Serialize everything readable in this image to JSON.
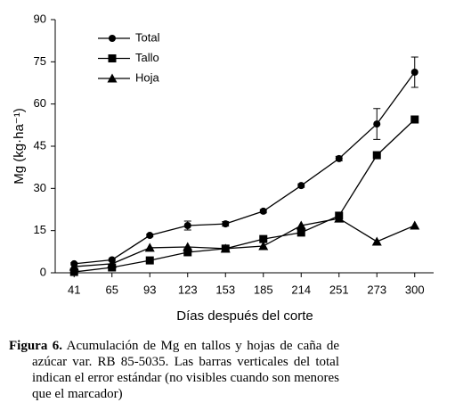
{
  "chart_data": {
    "type": "line",
    "x_label": "Días después del corte",
    "y_label": "Mg (kg·ha⁻¹)",
    "categories": [
      "41",
      "65",
      "93",
      "123",
      "153",
      "185",
      "214",
      "251",
      "273",
      "300"
    ],
    "series": [
      {
        "name": "Total",
        "color": "#000000",
        "marker": "circle",
        "values": [
          3.2,
          4.6,
          13.3,
          16.8,
          17.4,
          21.9,
          31,
          40.6,
          52.9,
          71.3
        ],
        "errors": [
          0.4,
          0.4,
          0.5,
          1.6,
          0.8,
          0.6,
          0.6,
          0.8,
          5.5,
          5.4
        ]
      },
      {
        "name": "Tallo",
        "color": "#000000",
        "marker": "square",
        "values": [
          0.3,
          1.9,
          4.4,
          7.3,
          8.6,
          12,
          14.3,
          20.3,
          41.8,
          54.5
        ]
      },
      {
        "name": "Hoja",
        "color": "#000000",
        "marker": "triangle",
        "values": [
          2.2,
          3.2,
          8.9,
          9.2,
          8.6,
          9.5,
          16.8,
          19.3,
          11.1,
          16.8
        ]
      }
    ],
    "ylim": [
      0,
      90
    ],
    "yticks": [
      0,
      15,
      30,
      45,
      60,
      75,
      90
    ],
    "grid": false,
    "legend": "upper-left"
  },
  "caption": {
    "label": "Figura 6.",
    "text": "Acumulación de Mg en tallos y hojas de caña de azúcar var. RB 85-5035. Las barras verticales del total indican el error estándar (no visibles cuando son menores que el marcador)"
  }
}
